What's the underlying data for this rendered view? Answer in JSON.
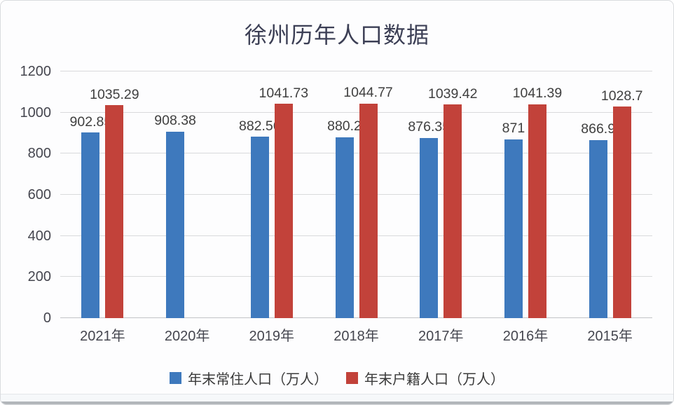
{
  "chart_data": {
    "type": "bar",
    "title": "徐州历年人口数据",
    "categories": [
      "2021年",
      "2020年",
      "2019年",
      "2018年",
      "2017年",
      "2016年",
      "2015年"
    ],
    "series": [
      {
        "key": "resident-population",
        "name": "年末常住人口（万人）",
        "color": "#3E79BD",
        "values": [
          902.85,
          908.38,
          882.56,
          880.2,
          876.35,
          871,
          866.9
        ]
      },
      {
        "key": "registered-population",
        "name": "年末户籍人口（万人）",
        "color": "#C2423A",
        "values": [
          1035.29,
          null,
          1041.73,
          1044.77,
          1039.42,
          1041.39,
          1028.7
        ]
      }
    ],
    "xlabel": "",
    "ylabel": "",
    "ylim": [
      0,
      1200
    ],
    "yticks": [
      0,
      200,
      400,
      600,
      800,
      1000,
      1200
    ],
    "grid": true,
    "legend_position": "bottom",
    "data_labels": "outside-end"
  },
  "colors": {
    "title_text": "#3c3f55",
    "axis_text": "#45464f",
    "data_label_text": "#3f3f3f",
    "gridline": "#d9dadc",
    "baseline": "#c2c4c7",
    "series_blue": "#3E79BD",
    "series_red": "#C2423A",
    "page_background": "#fdfdfe",
    "page_border": "#dadcdf",
    "bottom_strip": "#b2b6ba"
  }
}
